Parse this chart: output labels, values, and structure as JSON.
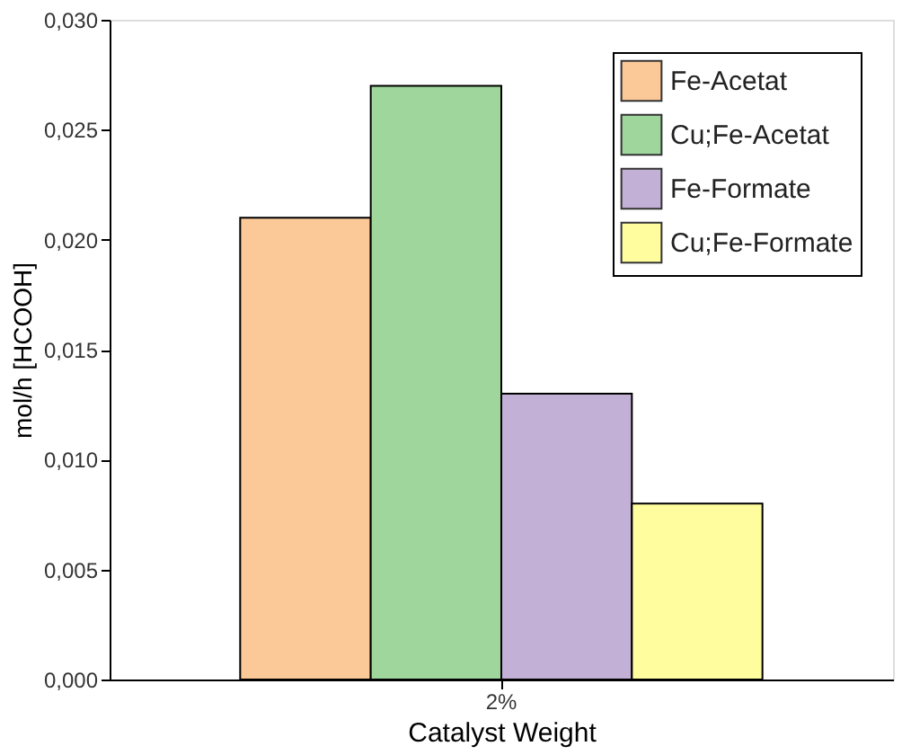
{
  "chart_data": {
    "type": "bar",
    "xlabel": "Catalyst Weight",
    "ylabel": "mol/h [HCOOH]",
    "categories": [
      "2%"
    ],
    "series": [
      {
        "name": "Fe-Acetat",
        "color": "#fbc897",
        "values": [
          0.021
        ]
      },
      {
        "name": "Cu;Fe-Acetat",
        "color": "#9ed69c",
        "values": [
          0.027
        ]
      },
      {
        "name": "Fe-Formate",
        "color": "#c2b0d6",
        "values": [
          0.013
        ]
      },
      {
        "name": "Cu;Fe-Formate",
        "color": "#fffd9e",
        "values": [
          0.008
        ]
      }
    ],
    "ylim": [
      0,
      0.03
    ],
    "yticks": [
      {
        "value": 0,
        "label": "0,000"
      },
      {
        "value": 0.005,
        "label": "0,005"
      },
      {
        "value": 0.01,
        "label": "0,010"
      },
      {
        "value": 0.015,
        "label": "0,015"
      },
      {
        "value": 0.02,
        "label": "0,020"
      },
      {
        "value": 0.025,
        "label": "0,025"
      },
      {
        "value": 0.03,
        "label": "0,030"
      }
    ],
    "grid": false,
    "legend": "top right"
  }
}
